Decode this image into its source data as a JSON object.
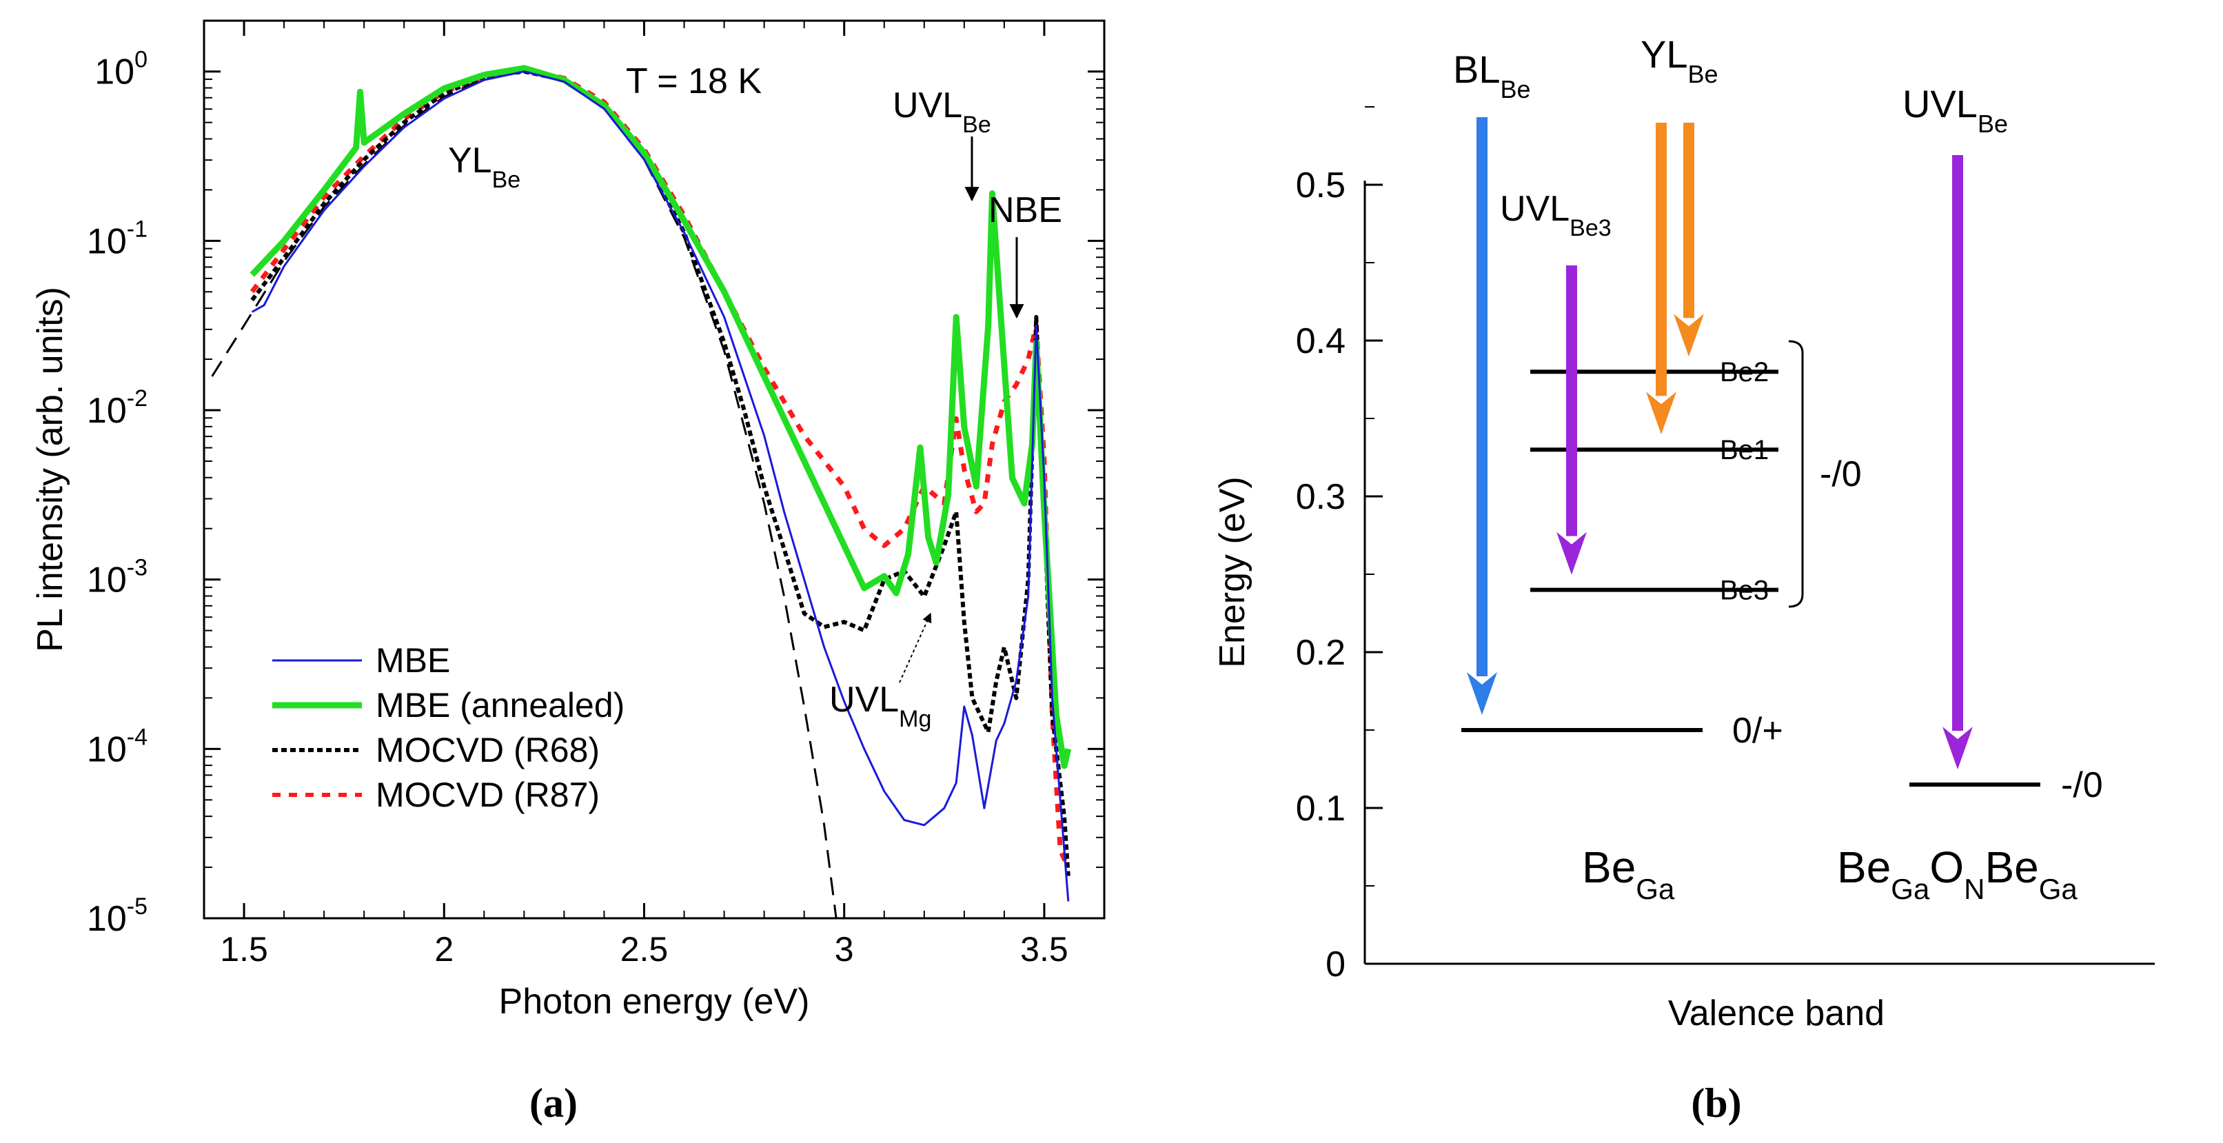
{
  "chart_data": [
    {
      "type": "line",
      "panel": "(a)",
      "yscale": "log",
      "xlabel": "Photon energy (eV)",
      "ylabel": "PL intensity (arb. units)",
      "xlim": [
        1.4,
        3.65
      ],
      "ylim_log10": [
        -5,
        0.3
      ],
      "x_ticks": [
        "1.5",
        "2",
        "2.5",
        "3",
        "3.5"
      ],
      "y_ticks": [
        {
          "base": "10",
          "exp": "0"
        },
        {
          "base": "10",
          "exp": "-1"
        },
        {
          "base": "10",
          "exp": "-2"
        },
        {
          "base": "10",
          "exp": "-3"
        },
        {
          "base": "10",
          "exp": "-4"
        },
        {
          "base": "10",
          "exp": "-5"
        }
      ],
      "annotations": {
        "temperature": "T = 18 K",
        "yl": {
          "main": "YL",
          "sub": "Be"
        },
        "uvl_be": {
          "main": "UVL",
          "sub": "Be"
        },
        "nbe": "NBE",
        "uvl_mg": {
          "main": "UVL",
          "sub": "Mg"
        }
      },
      "series": [
        {
          "name": "MBE",
          "color": "#1a1adc",
          "points": [
            [
              1.52,
              -1.42
            ],
            [
              1.55,
              -1.38
            ],
            [
              1.6,
              -1.15
            ],
            [
              1.7,
              -0.82
            ],
            [
              1.8,
              -0.56
            ],
            [
              1.9,
              -0.33
            ],
            [
              2.0,
              -0.16
            ],
            [
              2.1,
              -0.05
            ],
            [
              2.2,
              0.0
            ],
            [
              2.3,
              -0.06
            ],
            [
              2.4,
              -0.22
            ],
            [
              2.5,
              -0.52
            ],
            [
              2.6,
              -0.95
            ],
            [
              2.7,
              -1.45
            ],
            [
              2.8,
              -2.15
            ],
            [
              2.85,
              -2.6
            ],
            [
              2.9,
              -3.0
            ],
            [
              2.95,
              -3.4
            ],
            [
              3.0,
              -3.72
            ],
            [
              3.05,
              -4.0
            ],
            [
              3.1,
              -4.25
            ],
            [
              3.15,
              -4.42
            ],
            [
              3.2,
              -4.45
            ],
            [
              3.25,
              -4.35
            ],
            [
              3.28,
              -4.2
            ],
            [
              3.3,
              -3.75
            ],
            [
              3.32,
              -3.92
            ],
            [
              3.35,
              -4.35
            ],
            [
              3.38,
              -3.95
            ],
            [
              3.4,
              -3.85
            ],
            [
              3.43,
              -3.6
            ],
            [
              3.46,
              -3.1
            ],
            [
              3.48,
              -1.5
            ],
            [
              3.5,
              -2.4
            ],
            [
              3.52,
              -3.7
            ],
            [
              3.55,
              -4.6
            ],
            [
              3.56,
              -4.9
            ]
          ]
        },
        {
          "name": "MBE (annealed)",
          "color": "#22dd22",
          "points": [
            [
              1.52,
              -1.2
            ],
            [
              1.6,
              -1.0
            ],
            [
              1.7,
              -0.7
            ],
            [
              1.78,
              -0.45
            ],
            [
              1.79,
              -0.12
            ],
            [
              1.8,
              -0.42
            ],
            [
              1.9,
              -0.25
            ],
            [
              2.0,
              -0.1
            ],
            [
              2.1,
              -0.02
            ],
            [
              2.2,
              0.02
            ],
            [
              2.3,
              -0.05
            ],
            [
              2.4,
              -0.2
            ],
            [
              2.5,
              -0.48
            ],
            [
              2.6,
              -0.88
            ],
            [
              2.7,
              -1.3
            ],
            [
              2.8,
              -1.8
            ],
            [
              2.9,
              -2.3
            ],
            [
              3.0,
              -2.8
            ],
            [
              3.05,
              -3.05
            ],
            [
              3.1,
              -2.98
            ],
            [
              3.13,
              -3.08
            ],
            [
              3.16,
              -2.85
            ],
            [
              3.19,
              -2.22
            ],
            [
              3.21,
              -2.75
            ],
            [
              3.23,
              -2.9
            ],
            [
              3.26,
              -2.5
            ],
            [
              3.28,
              -1.45
            ],
            [
              3.3,
              -2.1
            ],
            [
              3.33,
              -2.45
            ],
            [
              3.36,
              -1.5
            ],
            [
              3.37,
              -0.72
            ],
            [
              3.39,
              -1.4
            ],
            [
              3.42,
              -2.4
            ],
            [
              3.45,
              -2.55
            ],
            [
              3.47,
              -2.2
            ],
            [
              3.48,
              -1.6
            ],
            [
              3.5,
              -2.6
            ],
            [
              3.53,
              -3.8
            ],
            [
              3.55,
              -4.1
            ],
            [
              3.56,
              -4.0
            ]
          ]
        },
        {
          "name": "MOCVD (R68)",
          "color": "#000000",
          "points": [
            [
              1.52,
              -1.35
            ],
            [
              1.6,
              -1.1
            ],
            [
              1.7,
              -0.78
            ],
            [
              1.8,
              -0.52
            ],
            [
              1.9,
              -0.3
            ],
            [
              2.0,
              -0.13
            ],
            [
              2.1,
              -0.03
            ],
            [
              2.2,
              0.0
            ],
            [
              2.3,
              -0.05
            ],
            [
              2.4,
              -0.2
            ],
            [
              2.5,
              -0.5
            ],
            [
              2.6,
              -0.95
            ],
            [
              2.7,
              -1.6
            ],
            [
              2.75,
              -2.0
            ],
            [
              2.8,
              -2.45
            ],
            [
              2.85,
              -2.82
            ],
            [
              2.9,
              -3.2
            ],
            [
              2.95,
              -3.28
            ],
            [
              3.0,
              -3.25
            ],
            [
              3.05,
              -3.3
            ],
            [
              3.1,
              -3.0
            ],
            [
              3.15,
              -2.95
            ],
            [
              3.2,
              -3.1
            ],
            [
              3.25,
              -2.8
            ],
            [
              3.28,
              -2.6
            ],
            [
              3.3,
              -3.25
            ],
            [
              3.32,
              -3.7
            ],
            [
              3.34,
              -3.8
            ],
            [
              3.36,
              -3.9
            ],
            [
              3.38,
              -3.6
            ],
            [
              3.4,
              -3.4
            ],
            [
              3.43,
              -3.7
            ],
            [
              3.46,
              -3.0
            ],
            [
              3.48,
              -1.45
            ],
            [
              3.5,
              -2.6
            ],
            [
              3.52,
              -3.8
            ],
            [
              3.55,
              -4.4
            ],
            [
              3.56,
              -4.75
            ]
          ]
        },
        {
          "name": "MOCVD (R87)",
          "color": "#ff1a1a",
          "points": [
            [
              1.52,
              -1.3
            ],
            [
              1.6,
              -1.05
            ],
            [
              1.7,
              -0.74
            ],
            [
              1.8,
              -0.5
            ],
            [
              1.9,
              -0.28
            ],
            [
              2.0,
              -0.12
            ],
            [
              2.1,
              -0.03
            ],
            [
              2.2,
              0.01
            ],
            [
              2.3,
              -0.04
            ],
            [
              2.4,
              -0.18
            ],
            [
              2.5,
              -0.46
            ],
            [
              2.6,
              -0.85
            ],
            [
              2.7,
              -1.3
            ],
            [
              2.8,
              -1.75
            ],
            [
              2.9,
              -2.15
            ],
            [
              3.0,
              -2.45
            ],
            [
              3.05,
              -2.7
            ],
            [
              3.1,
              -2.8
            ],
            [
              3.15,
              -2.7
            ],
            [
              3.2,
              -2.45
            ],
            [
              3.25,
              -2.55
            ],
            [
              3.28,
              -2.05
            ],
            [
              3.3,
              -2.35
            ],
            [
              3.33,
              -2.6
            ],
            [
              3.35,
              -2.55
            ],
            [
              3.37,
              -2.2
            ],
            [
              3.4,
              -1.95
            ],
            [
              3.43,
              -1.85
            ],
            [
              3.46,
              -1.7
            ],
            [
              3.48,
              -1.5
            ],
            [
              3.5,
              -2.3
            ],
            [
              3.52,
              -3.8
            ],
            [
              3.54,
              -4.6
            ],
            [
              3.56,
              -4.7
            ]
          ]
        },
        {
          "name": "fit",
          "color": "#000000",
          "dash": "long",
          "points": [
            [
              1.42,
              -1.8
            ],
            [
              1.5,
              -1.5
            ],
            [
              1.6,
              -1.12
            ],
            [
              1.7,
              -0.8
            ],
            [
              1.8,
              -0.55
            ],
            [
              1.9,
              -0.32
            ],
            [
              2.0,
              -0.15
            ],
            [
              2.1,
              -0.04
            ],
            [
              2.2,
              0.0
            ],
            [
              2.3,
              -0.06
            ],
            [
              2.4,
              -0.22
            ],
            [
              2.5,
              -0.52
            ],
            [
              2.6,
              -0.98
            ],
            [
              2.7,
              -1.65
            ],
            [
              2.8,
              -2.55
            ],
            [
              2.85,
              -3.1
            ],
            [
              2.9,
              -3.75
            ],
            [
              2.95,
              -4.45
            ],
            [
              2.98,
              -5.0
            ]
          ]
        }
      ]
    },
    {
      "type": "diagram",
      "panel": "(b)",
      "ylabel": "Energy (eV)",
      "xlabel": "Valence band",
      "ylim": [
        0,
        0.55
      ],
      "y_ticks": [
        "0",
        "0.1",
        "0.2",
        "0.3",
        "0.4",
        "0.5"
      ],
      "levels": [
        {
          "name": "Be2",
          "energy": 0.38,
          "label": "Be2"
        },
        {
          "name": "Be1",
          "energy": 0.33,
          "label": "Be1"
        },
        {
          "name": "Be3",
          "energy": 0.24,
          "label": "Be3"
        },
        {
          "name": "0/+",
          "energy": 0.15,
          "label": "0/+"
        },
        {
          "name": "complex",
          "energy": 0.115,
          "label": "-/0"
        }
      ],
      "bracket_label": "-/0",
      "transitions": [
        {
          "name": "BL-Be",
          "from": 0.55,
          "to": 0.15,
          "color": "#2f7de8"
        },
        {
          "name": "UVL-Be3",
          "from": 0.45,
          "to": 0.24,
          "color": "#9b25d9"
        },
        {
          "name": "YL-Be-a",
          "from": 0.55,
          "to": 0.33,
          "color": "#f58a1f"
        },
        {
          "name": "YL-Be-b",
          "from": 0.55,
          "to": 0.38,
          "color": "#f58a1f"
        },
        {
          "name": "UVL-Be",
          "from": 0.52,
          "to": 0.115,
          "color": "#9b25d9"
        }
      ],
      "labels": {
        "bl": {
          "main": "BL",
          "sub": "Be"
        },
        "yl": {
          "main": "YL",
          "sub": "Be"
        },
        "uvl": {
          "main": "UVL",
          "sub": "Be"
        },
        "uvl3": {
          "main": "UVL",
          "sub": "Be3"
        },
        "bega": {
          "main": "Be",
          "sub": "Ga"
        },
        "complex": [
          {
            "main": "Be",
            "sub": "Ga"
          },
          {
            "main": "O",
            "sub": "N"
          },
          {
            "main": "Be",
            "sub": "Ga"
          }
        ]
      }
    }
  ],
  "legend": [
    "MBE",
    "MBE (annealed)",
    "MOCVD (R68)",
    "MOCVD (R87)"
  ],
  "captions": {
    "a": "(a)",
    "b": "(b)"
  }
}
